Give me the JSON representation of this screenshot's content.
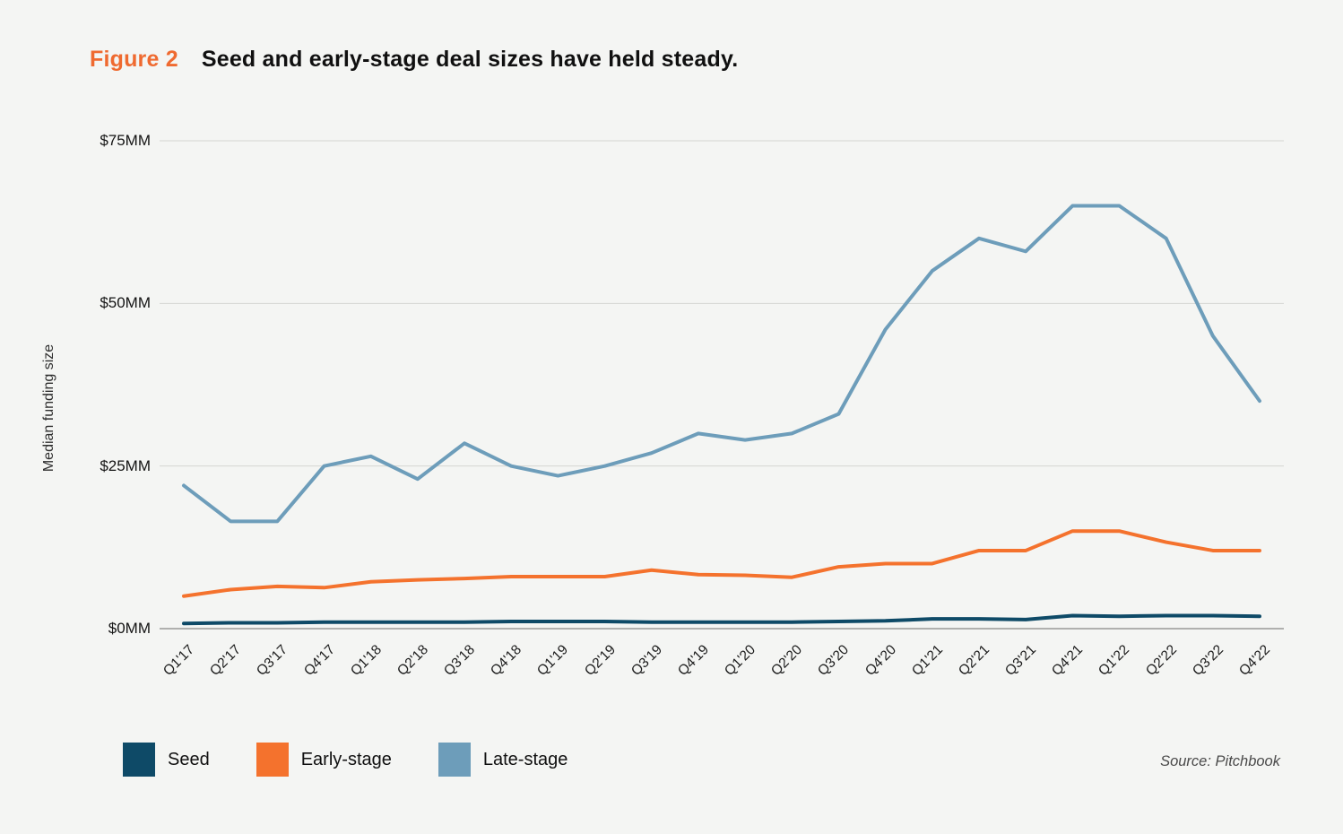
{
  "header": {
    "figure_label": "Figure 2",
    "title": "Seed and early-stage deal sizes have held steady."
  },
  "source": "Source: Pitchbook",
  "colors": {
    "background": "#f4f5f3",
    "figure_label": "#ef6a30",
    "seed": "#0e4a67",
    "early_stage": "#f4722d",
    "late_stage": "#6d9dba",
    "gridline": "#d5d5d2",
    "axis_line": "#9a9a98"
  },
  "legend": [
    {
      "label": "Seed",
      "color": "#0e4a67"
    },
    {
      "label": "Early-stage",
      "color": "#f4722d"
    },
    {
      "label": "Late-stage",
      "color": "#6d9dba"
    }
  ],
  "chart_data": {
    "type": "line",
    "title": "Seed and early-stage deal sizes have held steady.",
    "xlabel": "",
    "ylabel": "Median funding size",
    "unit": "$MM",
    "ylim": [
      0,
      75
    ],
    "grid": "horizontal",
    "legend_position": "bottom-left",
    "y_ticks": [
      {
        "value": 0,
        "label": "$0MM"
      },
      {
        "value": 25,
        "label": "$25MM"
      },
      {
        "value": 50,
        "label": "$50MM"
      },
      {
        "value": 75,
        "label": "$75MM"
      }
    ],
    "categories": [
      "Q1'17",
      "Q2'17",
      "Q3'17",
      "Q4'17",
      "Q1'18",
      "Q2'18",
      "Q3'18",
      "Q4'18",
      "Q1'19",
      "Q2'19",
      "Q3'19",
      "Q4'19",
      "Q1'20",
      "Q2'20",
      "Q3'20",
      "Q4'20",
      "Q1'21",
      "Q2'21",
      "Q3'21",
      "Q4'21",
      "Q1'22",
      "Q2'22",
      "Q3'22",
      "Q4'22"
    ],
    "series": [
      {
        "name": "Seed",
        "color": "#0e4a67",
        "values": [
          0.8,
          0.9,
          0.9,
          1.0,
          1.0,
          1.0,
          1.0,
          1.1,
          1.1,
          1.1,
          1.0,
          1.0,
          1.0,
          1.0,
          1.1,
          1.2,
          1.5,
          1.5,
          1.4,
          2.0,
          1.9,
          2.0,
          2.0,
          1.9
        ]
      },
      {
        "name": "Early-stage",
        "color": "#f4722d",
        "values": [
          5.0,
          6.0,
          6.5,
          6.3,
          7.2,
          7.5,
          7.7,
          8.0,
          8.0,
          8.0,
          9.0,
          8.3,
          8.2,
          7.9,
          9.5,
          10.0,
          10.0,
          12.0,
          12.0,
          15.0,
          15.0,
          13.3,
          12.0,
          12.0
        ]
      },
      {
        "name": "Late-stage",
        "color": "#6d9dba",
        "values": [
          22.0,
          16.5,
          16.5,
          25.0,
          26.5,
          23.0,
          28.5,
          25.0,
          23.5,
          25.0,
          27.0,
          30.0,
          29.0,
          30.0,
          33.0,
          46.0,
          55.0,
          60.0,
          58.0,
          65.0,
          65.0,
          60.0,
          45.0,
          35.0
        ]
      }
    ]
  }
}
